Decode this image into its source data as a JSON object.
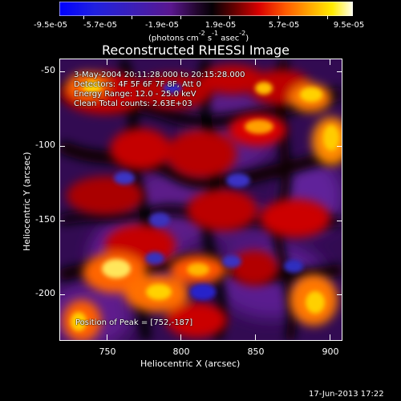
{
  "colorbar": {
    "tick_labels": [
      "-9.5e-05",
      "-5.7e-05",
      "-1.9e-05",
      "1.9e-05",
      "5.7e-05",
      "9.5e-05"
    ],
    "units_line1": "(photons cm",
    "units_line2": "s",
    "units_line3": "asec",
    "units_close": ")",
    "exp1": "-2",
    "exp2": "-1",
    "exp3": "-2"
  },
  "title": "Reconstructed RHESSI Image",
  "annotations": {
    "time_range": "3-May-2004 20:11:28.000 to 20:15:28.000",
    "detectors": "Detectors: 4F 5F 6F 7F 8F, Att 0",
    "energy": "Energy Range: 12.0 - 25.0 keV",
    "method": "Clean     Total counts: 2.63E+03",
    "peak": "Position of Peak = [752,-187]"
  },
  "axes": {
    "xlabel": "Heliocentric X (arcsec)",
    "ylabel": "Heliocentric Y (arcsec)",
    "xticks": [
      "750",
      "800",
      "850",
      "900"
    ],
    "yticks": [
      "-50",
      "-100",
      "-150",
      "-200"
    ]
  },
  "footer": {
    "date": "17-Jun-2013 17:22"
  },
  "colors": {
    "background": "#000000",
    "axis": "#ffffff"
  }
}
